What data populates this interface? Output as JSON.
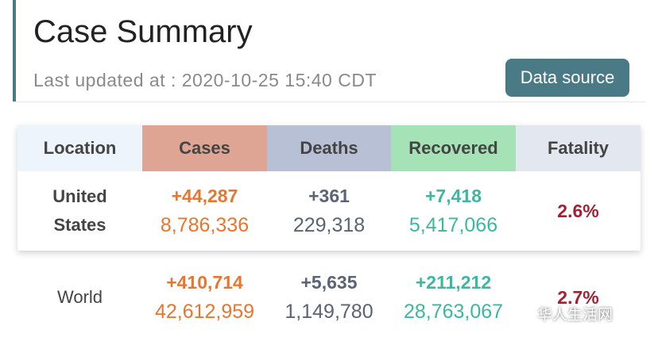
{
  "header": {
    "title": "Case Summary",
    "updated": "Last updated at : 2020-10-25 15:40 CDT",
    "button": "Data source"
  },
  "table": {
    "columns": [
      "Location",
      "Cases",
      "Deaths",
      "Recovered",
      "Fatality"
    ],
    "rows": [
      {
        "location": "United States",
        "cases_new": "+44,287",
        "cases_total": "8,786,336",
        "deaths_new": "+361",
        "deaths_total": "229,318",
        "recovered_new": "+7,418",
        "recovered_total": "5,417,066",
        "fatality": "2.6%"
      },
      {
        "location": "World",
        "cases_new": "+410,714",
        "cases_total": "42,612,959",
        "deaths_new": "+5,635",
        "deaths_total": "1,149,780",
        "recovered_new": "+211,212",
        "recovered_total": "28,763,067",
        "fatality": "2.7%"
      }
    ]
  },
  "watermark": "华人生活网"
}
